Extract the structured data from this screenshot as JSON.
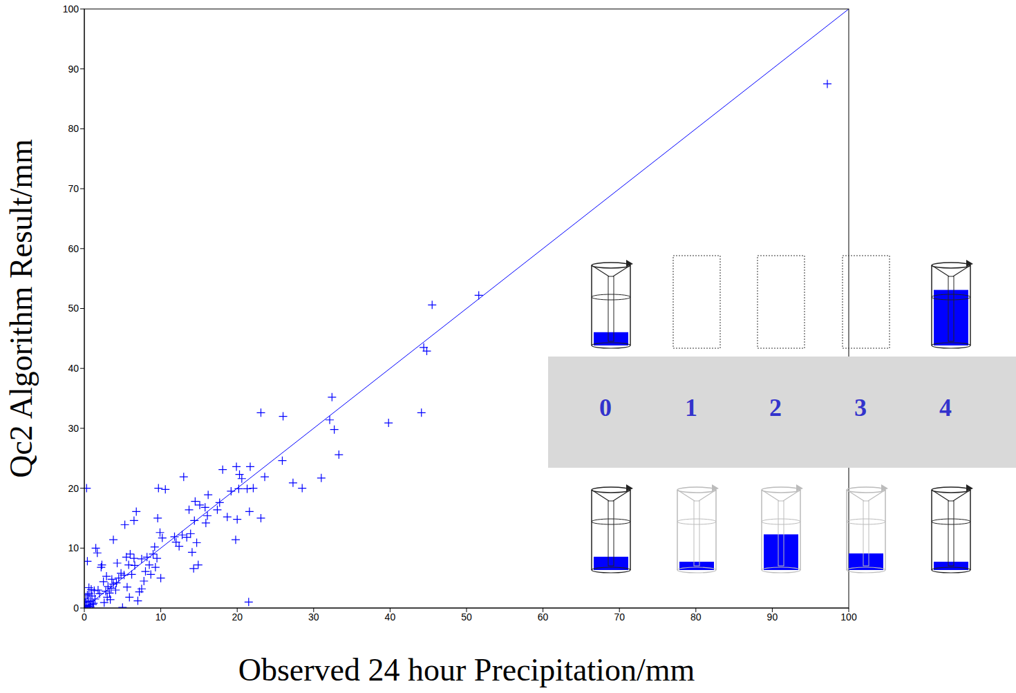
{
  "chart_data": {
    "type": "scatter",
    "x_label": "Observed 24 hour Precipitation/mm",
    "y_label": "Qc2 Algorithm Result/mm",
    "marker": "plus",
    "color": "#0000ff",
    "grid": false,
    "xlim": [
      0,
      100
    ],
    "ylim": [
      0,
      100
    ],
    "xticks": [
      0,
      10,
      20,
      30,
      40,
      50,
      60,
      70,
      80,
      90,
      100
    ],
    "yticks": [
      0,
      10,
      20,
      30,
      40,
      50,
      60,
      70,
      80,
      90,
      100
    ],
    "x": [
      97.2,
      51.6,
      45.5,
      44.4,
      44.8,
      44.1,
      39.8,
      32.4,
      32.1,
      32.7,
      33.3,
      31,
      28.5,
      27.3,
      26,
      25.9,
      23.1,
      23.6,
      23.1,
      22.1,
      21.7,
      21.3,
      21.6,
      21.5,
      20.6,
      20.2,
      20.3,
      19.9,
      19.8,
      20,
      19.2,
      18.7,
      18.1,
      17.7,
      17.4,
      16.2,
      16.1,
      15.9,
      15.8,
      15.1,
      14.5,
      14.7,
      14.9,
      14.3,
      14.1,
      13.9,
      13.7,
      13.4,
      13,
      12.8,
      12.4,
      11.8,
      10.6,
      9.7,
      9.9,
      10.2,
      9.6,
      9.2,
      9.5,
      9.3,
      10,
      9,
      8.7,
      8.5,
      8.2,
      8,
      7.8,
      7.5,
      6.8,
      6.5,
      7,
      7.2,
      6.5,
      6.2,
      6,
      5.8,
      5.5,
      5.3,
      5.6,
      5.2,
      5,
      4.8,
      4.5,
      4.3,
      4.2,
      3.8,
      3.8,
      3.5,
      3.3,
      3.1,
      3,
      2.8,
      2.5,
      2.3,
      2.2,
      2,
      1.8,
      1.5,
      1.7,
      1.4,
      1.3,
      1.2,
      1,
      0.9,
      0.8,
      0.7,
      0.6,
      0.5,
      0.4,
      0.3,
      0.3,
      0.2,
      0.1,
      0,
      0.1,
      0.5,
      0.8,
      1.1,
      0.6,
      0.4,
      2.6,
      3.4,
      4.1,
      5.9,
      6.6,
      7.5,
      3.6,
      2.9,
      12,
      14.4
    ],
    "values": [
      87.5,
      52.2,
      50.6,
      43.5,
      42.9,
      32.6,
      30.9,
      35.2,
      31.4,
      29.8,
      25.6,
      21.7,
      20,
      20.9,
      32,
      24.6,
      32.6,
      21.9,
      15,
      20,
      23.6,
      19.9,
      16.1,
      1,
      21.6,
      19.9,
      22.3,
      23.6,
      11.4,
      14.8,
      19.5,
      15.2,
      23.1,
      17.6,
      16.4,
      18.9,
      15.4,
      14.2,
      16.8,
      17.2,
      17.8,
      10.9,
      7.2,
      6.6,
      9.3,
      12.4,
      16.4,
      11.8,
      21.9,
      12.2,
      10.3,
      11.9,
      19.8,
      20,
      12.6,
      11.7,
      15,
      10.2,
      8.3,
      6.8,
      5,
      9,
      5.6,
      7.2,
      8.5,
      6.1,
      4.5,
      3.2,
      16.1,
      14.6,
      1.2,
      2.7,
      8.3,
      5.6,
      9,
      7.2,
      8.5,
      13.9,
      3.5,
      5.5,
      0.1,
      5.8,
      5,
      7.5,
      4.2,
      11.4,
      4,
      3.3,
      2.5,
      3.6,
      1.8,
      2.8,
      4.4,
      7.2,
      6.8,
      2.4,
      3,
      10,
      9.2,
      1.5,
      2.9,
      0.8,
      2,
      3.1,
      1.2,
      0.5,
      2.4,
      1.1,
      7.8,
      20,
      0.4,
      1.5,
      0.2,
      0,
      0.9,
      0.3,
      0.2,
      0.6,
      3.4,
      2.2,
      0.9,
      1.4,
      3,
      1.8,
      7.1,
      8.2,
      4.8,
      5.3,
      11,
      14.6
    ],
    "reference_line": {
      "x": [
        0,
        100
      ],
      "values": [
        0,
        100
      ],
      "color": "#0000ff"
    },
    "inset": {
      "labels": [
        "0",
        "1",
        "2",
        "3",
        "4"
      ],
      "top_fill": [
        0.16,
        null,
        null,
        null,
        0.67
      ],
      "bottom_fill": [
        0.16,
        0.1,
        0.43,
        0.2,
        0.1
      ],
      "color": "#0000ff"
    }
  }
}
